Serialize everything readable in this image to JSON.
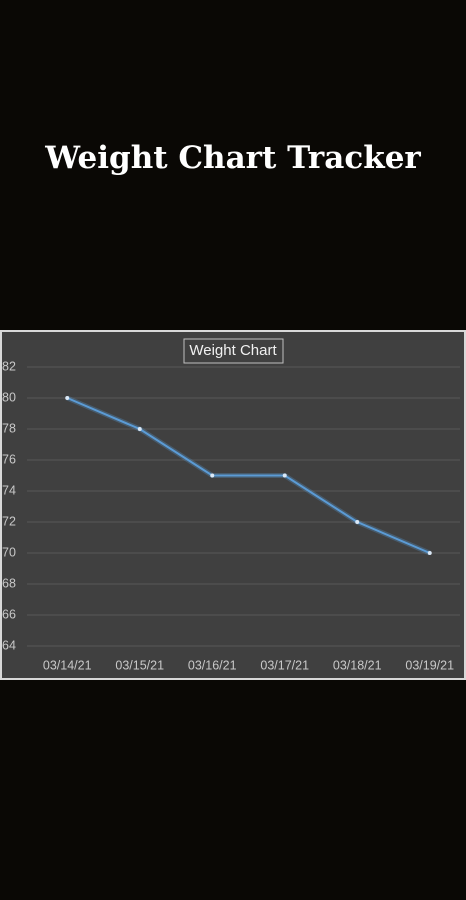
{
  "header": {
    "title": "Weight Chart Tracker"
  },
  "chart_data": {
    "type": "line",
    "title": "Weight Chart",
    "categories": [
      "03/14/21",
      "03/15/21",
      "03/16/21",
      "03/17/21",
      "03/18/21",
      "03/19/21"
    ],
    "series": [
      {
        "name": "Weight",
        "color": "#5b9bd5",
        "values": [
          80,
          78,
          75,
          75,
          72,
          70
        ]
      }
    ],
    "ylim": [
      64,
      82
    ],
    "yticks": [
      64,
      66,
      68,
      70,
      72,
      74,
      76,
      78,
      80,
      82
    ],
    "grid": true
  }
}
